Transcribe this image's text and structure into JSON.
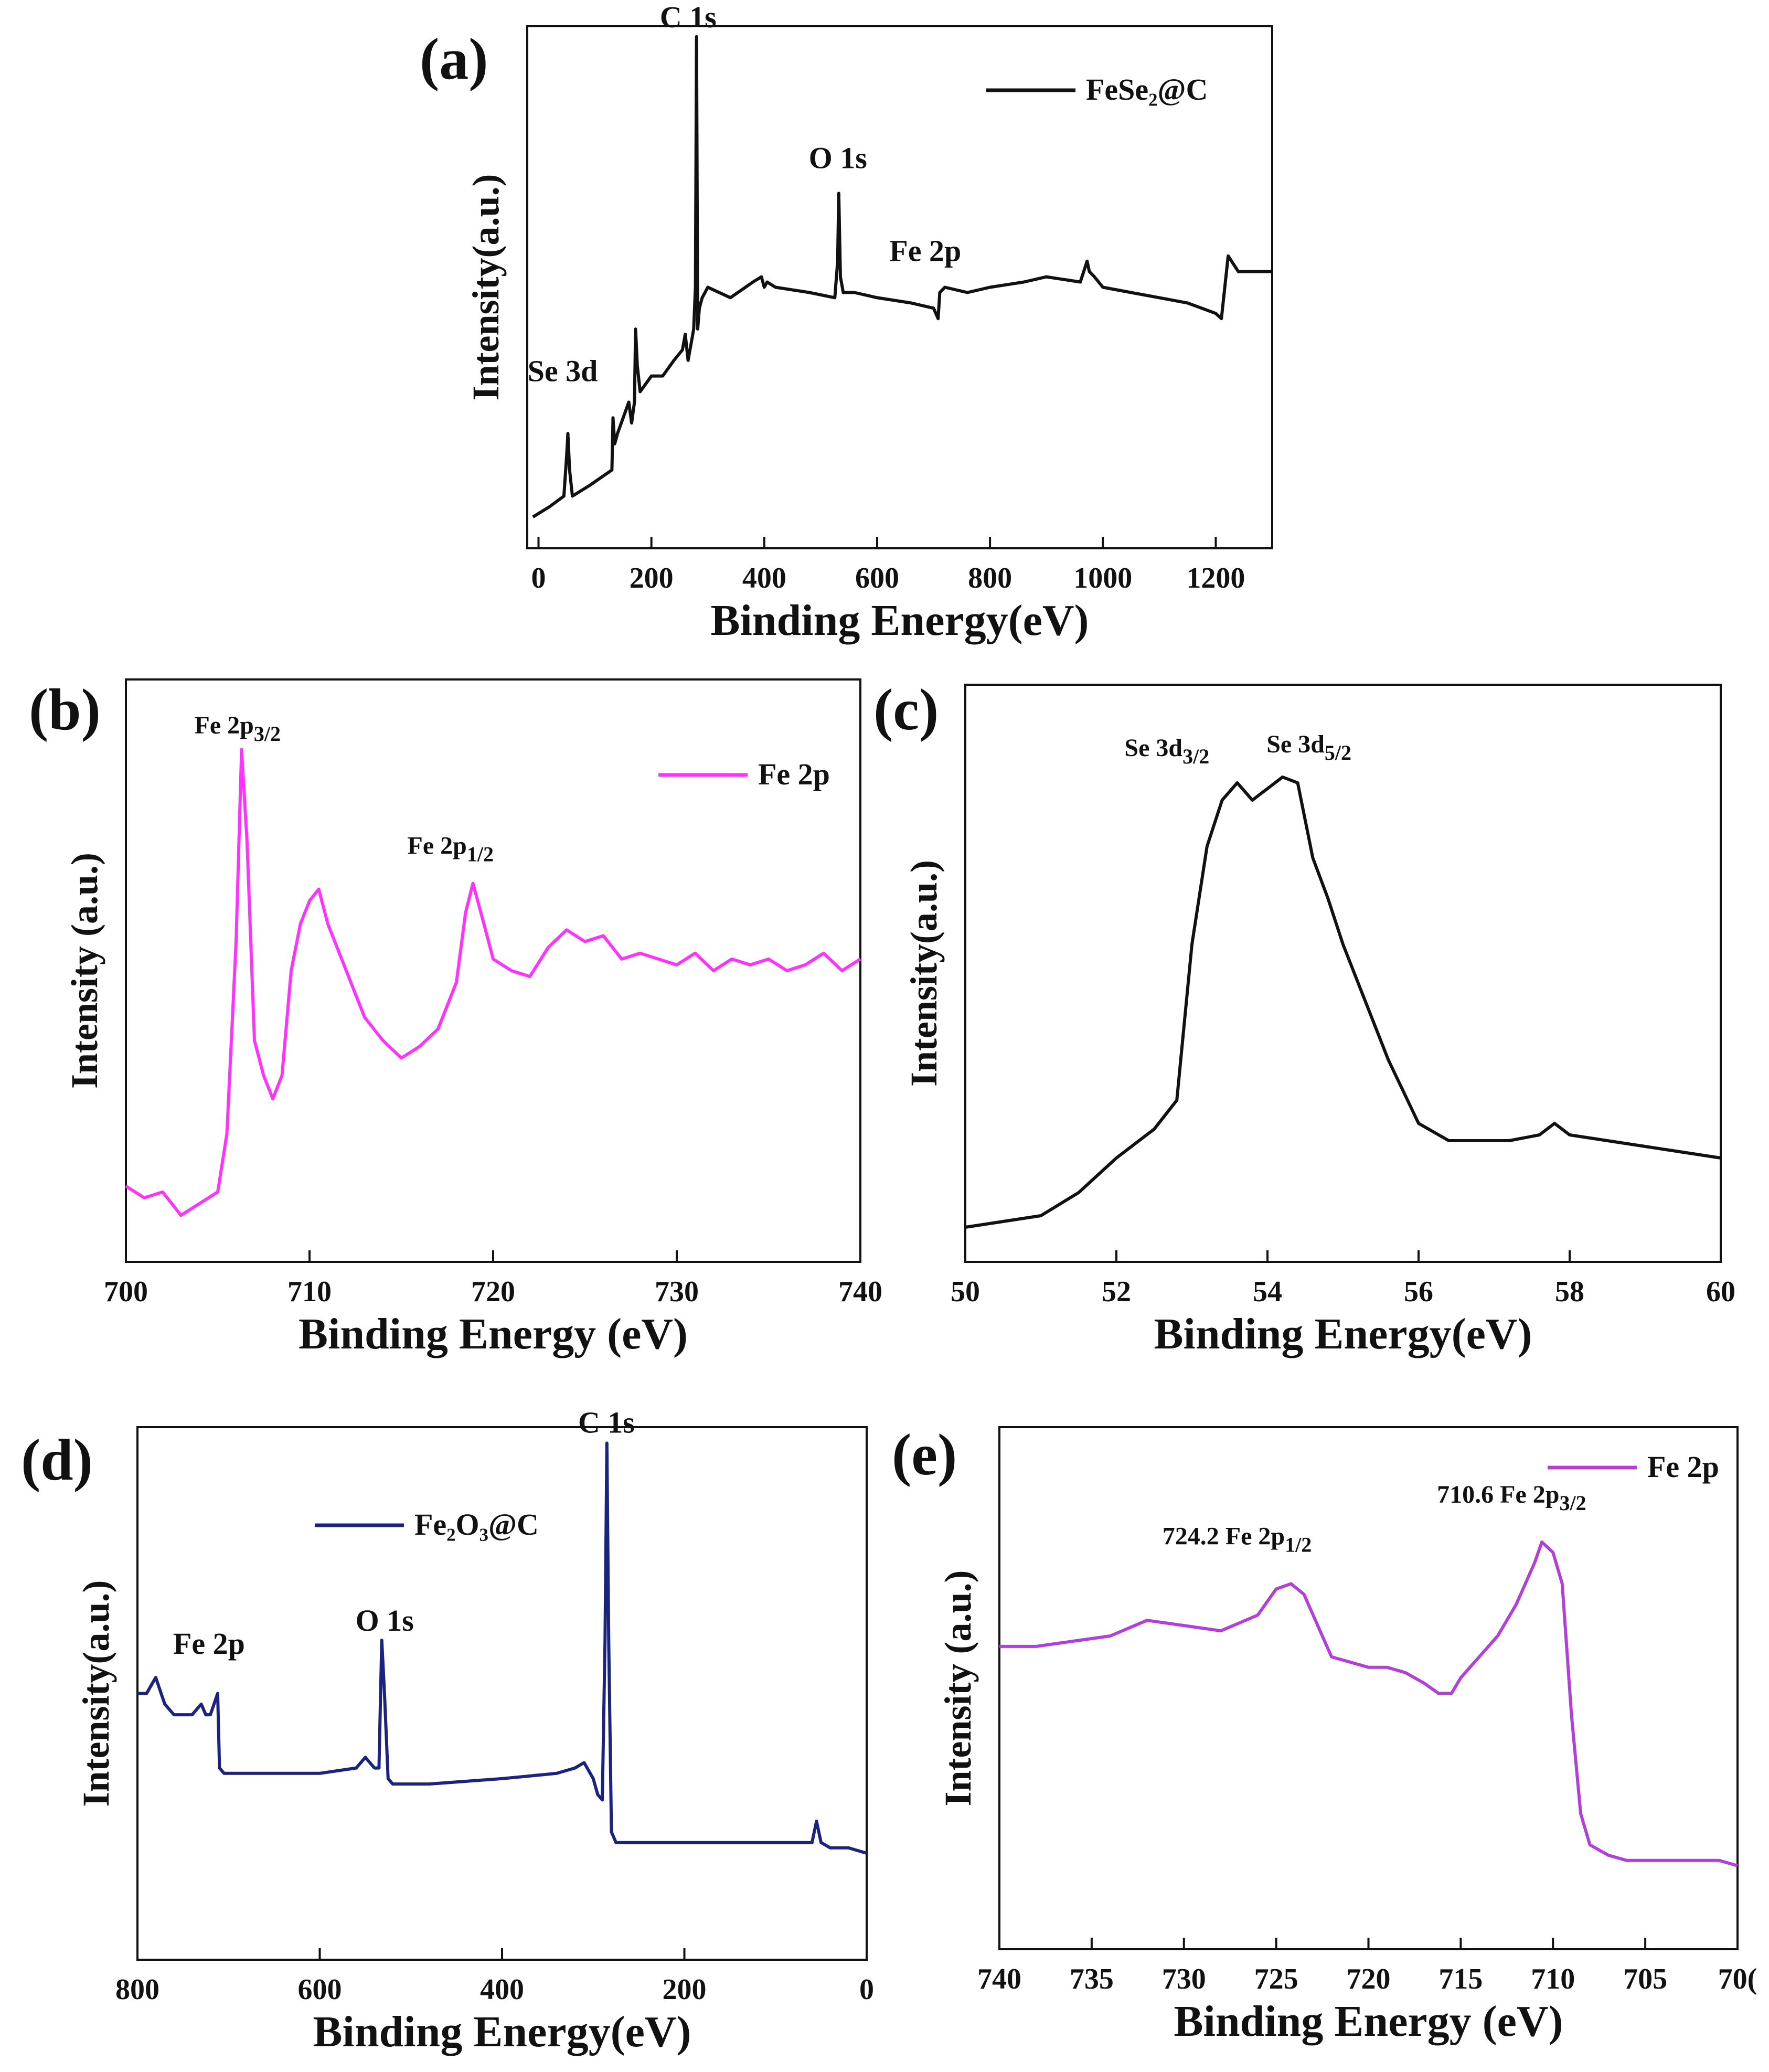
{
  "chart_data": [
    {
      "id": "a",
      "panel_label": "(a)",
      "type": "line",
      "xlabel": "Binding Energy(eV)",
      "ylabel": "Intensity(a.u.)",
      "xlim": [
        -20,
        1300
      ],
      "ylim": [
        0,
        1
      ],
      "xticks": [
        0,
        200,
        400,
        600,
        800,
        1000,
        1200
      ],
      "tick_labels": [
        "0",
        "200",
        "400",
        "600",
        "800",
        "1000",
        "1200"
      ],
      "legend": {
        "label": "FeSe₂@C",
        "color": "#111111",
        "position": "top-right"
      },
      "series": [
        {
          "name": "FeSe₂@C",
          "color": "#111111",
          "x": [
            -10,
            20,
            45,
            50,
            52,
            55,
            60,
            90,
            130,
            132,
            135,
            140,
            160,
            165,
            170,
            172,
            175,
            180,
            200,
            220,
            240,
            255,
            260,
            265,
            270,
            275,
            278,
            280,
            282,
            285,
            290,
            300,
            340,
            380,
            395,
            400,
            405,
            420,
            480,
            525,
            530,
            532,
            535,
            540,
            560,
            600,
            660,
            700,
            708,
            711,
            720,
            760,
            800,
            860,
            900,
            960,
            972,
            976,
            985,
            1000,
            1050,
            1100,
            1150,
            1200,
            1210,
            1222,
            1228,
            1240,
            1260,
            1300
          ],
          "y": [
            0.06,
            0.08,
            0.1,
            0.18,
            0.22,
            0.15,
            0.1,
            0.12,
            0.15,
            0.25,
            0.2,
            0.22,
            0.28,
            0.24,
            0.28,
            0.42,
            0.35,
            0.3,
            0.33,
            0.33,
            0.36,
            0.38,
            0.41,
            0.36,
            0.39,
            0.42,
            0.5,
            0.98,
            0.42,
            0.46,
            0.48,
            0.5,
            0.48,
            0.51,
            0.52,
            0.5,
            0.51,
            0.5,
            0.49,
            0.48,
            0.55,
            0.68,
            0.52,
            0.49,
            0.49,
            0.48,
            0.47,
            0.46,
            0.44,
            0.49,
            0.5,
            0.49,
            0.5,
            0.51,
            0.52,
            0.51,
            0.55,
            0.53,
            0.52,
            0.5,
            0.49,
            0.48,
            0.47,
            0.45,
            0.44,
            0.56,
            0.55,
            0.53,
            0.53,
            0.53
          ]
        }
      ],
      "annotations": [
        {
          "text": "C 1s",
          "x": 280,
          "y": 0.98
        },
        {
          "text": "O 1s",
          "x": 530,
          "y": 0.7
        },
        {
          "text": "Fe 2p",
          "x": 710,
          "y": 0.53
        },
        {
          "text": "Se 3d",
          "x": 55,
          "y": 0.25
        }
      ]
    },
    {
      "id": "b",
      "panel_label": "(b)",
      "type": "line",
      "xlabel": "Binding Energy (eV)",
      "ylabel": "Intensity (a.u.)",
      "xlim": [
        700,
        740
      ],
      "ylim": [
        0,
        1
      ],
      "xticks": [
        700,
        710,
        720,
        730,
        740
      ],
      "tick_labels": [
        "700",
        "710",
        "720",
        "730",
        "740"
      ],
      "legend": {
        "label": "Fe 2p",
        "color": "#ff33ff",
        "position": "top-right"
      },
      "series": [
        {
          "name": "Fe 2p",
          "color": "#ff33ff",
          "x": [
            700,
            701,
            702,
            703,
            704,
            705,
            705.5,
            706,
            706.3,
            706.6,
            707,
            707.5,
            708,
            708.5,
            709,
            709.5,
            710,
            710.5,
            711,
            712,
            713,
            714,
            715,
            716,
            717,
            718,
            718.5,
            718.9,
            719.5,
            720,
            721,
            722,
            723,
            724,
            725,
            726,
            727,
            728,
            729,
            730,
            731,
            732,
            733,
            734,
            735,
            736,
            737,
            738,
            739,
            740
          ],
          "y": [
            0.13,
            0.11,
            0.12,
            0.08,
            0.1,
            0.12,
            0.22,
            0.55,
            0.88,
            0.72,
            0.38,
            0.32,
            0.28,
            0.32,
            0.5,
            0.58,
            0.62,
            0.64,
            0.58,
            0.5,
            0.42,
            0.38,
            0.35,
            0.37,
            0.4,
            0.48,
            0.6,
            0.65,
            0.58,
            0.52,
            0.5,
            0.49,
            0.54,
            0.57,
            0.55,
            0.56,
            0.52,
            0.53,
            0.52,
            0.51,
            0.53,
            0.5,
            0.52,
            0.51,
            0.52,
            0.5,
            0.51,
            0.53,
            0.5,
            0.52
          ]
        }
      ],
      "annotations": [
        {
          "text": "Fe 2p",
          "sub": "3/2",
          "x": 706.3,
          "y": 0.88
        },
        {
          "text": "Fe 2p",
          "sub": "1/2",
          "x": 718.9,
          "y": 0.66
        }
      ]
    },
    {
      "id": "c",
      "panel_label": "(c)",
      "type": "line",
      "xlabel": "Binding Energy(eV)",
      "ylabel": "Intensity(a.u.)",
      "xlim": [
        50,
        60
      ],
      "ylim": [
        0,
        1
      ],
      "xticks": [
        50,
        52,
        54,
        56,
        58,
        60
      ],
      "tick_labels": [
        "50",
        "52",
        "54",
        "56",
        "58",
        "60"
      ],
      "legend": null,
      "series": [
        {
          "name": "Se 3d",
          "color": "#111111",
          "x": [
            50,
            50.5,
            51,
            51.5,
            52,
            52.5,
            52.8,
            53,
            53.2,
            53.4,
            53.6,
            53.8,
            54,
            54.2,
            54.4,
            54.6,
            54.8,
            55,
            55.3,
            55.6,
            56,
            56.4,
            56.8,
            57.2,
            57.6,
            57.8,
            58,
            58.5,
            59,
            59.5,
            60
          ],
          "y": [
            0.06,
            0.07,
            0.08,
            0.12,
            0.18,
            0.23,
            0.28,
            0.55,
            0.72,
            0.8,
            0.83,
            0.8,
            0.82,
            0.84,
            0.83,
            0.7,
            0.63,
            0.55,
            0.45,
            0.35,
            0.24,
            0.21,
            0.21,
            0.21,
            0.22,
            0.24,
            0.22,
            0.21,
            0.2,
            0.19,
            0.18
          ]
        }
      ],
      "annotations": [
        {
          "text": "Se 3d",
          "sub": "3/2",
          "x": 53.6,
          "y": 0.84
        },
        {
          "text": "Se 3d",
          "sub": "5/2",
          "x": 54.3,
          "y": 0.86
        }
      ]
    },
    {
      "id": "d",
      "panel_label": "(d)",
      "type": "line",
      "xlabel": "Binding Energy(eV)",
      "ylabel": "Intensity(a.u.)",
      "xlim": [
        800,
        0
      ],
      "ylim": [
        0,
        1
      ],
      "xticks": [
        800,
        600,
        400,
        200,
        0
      ],
      "tick_labels": [
        "800",
        "600",
        "400",
        "200",
        "0"
      ],
      "legend": {
        "label": "Fe₂O₃@C",
        "color": "#1a237e",
        "position": "top-left"
      },
      "series": [
        {
          "name": "Fe₂O₃@C",
          "color": "#1a237e",
          "x": [
            800,
            790,
            780,
            770,
            760,
            740,
            730,
            725,
            720,
            712,
            710,
            705,
            700,
            650,
            600,
            560,
            550,
            540,
            535,
            532,
            529,
            525,
            520,
            480,
            400,
            340,
            320,
            310,
            300,
            295,
            290,
            287,
            285,
            283,
            280,
            275,
            250,
            200,
            150,
            100,
            60,
            55,
            50,
            40,
            20,
            0
          ],
          "y": [
            0.5,
            0.5,
            0.53,
            0.48,
            0.46,
            0.46,
            0.48,
            0.46,
            0.46,
            0.5,
            0.36,
            0.35,
            0.35,
            0.35,
            0.35,
            0.36,
            0.38,
            0.36,
            0.36,
            0.6,
            0.5,
            0.34,
            0.33,
            0.33,
            0.34,
            0.35,
            0.36,
            0.37,
            0.34,
            0.31,
            0.3,
            0.6,
            0.97,
            0.6,
            0.24,
            0.22,
            0.22,
            0.22,
            0.22,
            0.22,
            0.22,
            0.26,
            0.22,
            0.21,
            0.21,
            0.2
          ]
        }
      ],
      "annotations": [
        {
          "text": "C 1s",
          "x": 285,
          "y": 0.97
        },
        {
          "text": "O 1s",
          "x": 532,
          "y": 0.6
        },
        {
          "text": "Fe 2p",
          "x": 712,
          "y": 0.55
        }
      ]
    },
    {
      "id": "e",
      "panel_label": "(e)",
      "type": "line",
      "xlabel": "Binding Energy (eV)",
      "ylabel": "Intensity (a.u.)",
      "xlim": [
        740,
        700
      ],
      "ylim": [
        0,
        1
      ],
      "xticks": [
        740,
        735,
        730,
        725,
        720,
        715,
        710,
        705,
        700
      ],
      "tick_labels": [
        "740",
        "735",
        "730",
        "725",
        "720",
        "715",
        "710",
        "705",
        "70("
      ],
      "legend": {
        "label": "Fe 2p",
        "color": "#b040d8",
        "position": "top-right"
      },
      "series": [
        {
          "name": "Fe 2p",
          "color": "#b040d8",
          "x": [
            740,
            738,
            736,
            734,
            732,
            730,
            728,
            726,
            725,
            724.2,
            723.5,
            723,
            722,
            721,
            720,
            719,
            718,
            717,
            716.2,
            715.5,
            715,
            714,
            713,
            712,
            711,
            710.6,
            710,
            709.5,
            709,
            708.5,
            708,
            707,
            706,
            705,
            704,
            703,
            702,
            701,
            700
          ],
          "y": [
            0.58,
            0.58,
            0.59,
            0.6,
            0.63,
            0.62,
            0.61,
            0.64,
            0.69,
            0.7,
            0.68,
            0.64,
            0.56,
            0.55,
            0.54,
            0.54,
            0.53,
            0.51,
            0.49,
            0.49,
            0.52,
            0.56,
            0.6,
            0.66,
            0.74,
            0.78,
            0.76,
            0.7,
            0.45,
            0.26,
            0.2,
            0.18,
            0.17,
            0.17,
            0.17,
            0.17,
            0.17,
            0.17,
            0.16
          ]
        }
      ],
      "annotations": [
        {
          "text": "724.2 Fe 2p",
          "sub": "1/2",
          "x": 724.2,
          "y": 0.72
        },
        {
          "text": "710.6 Fe 2p",
          "sub": "3/2",
          "x": 710.6,
          "y": 0.8
        }
      ]
    }
  ]
}
